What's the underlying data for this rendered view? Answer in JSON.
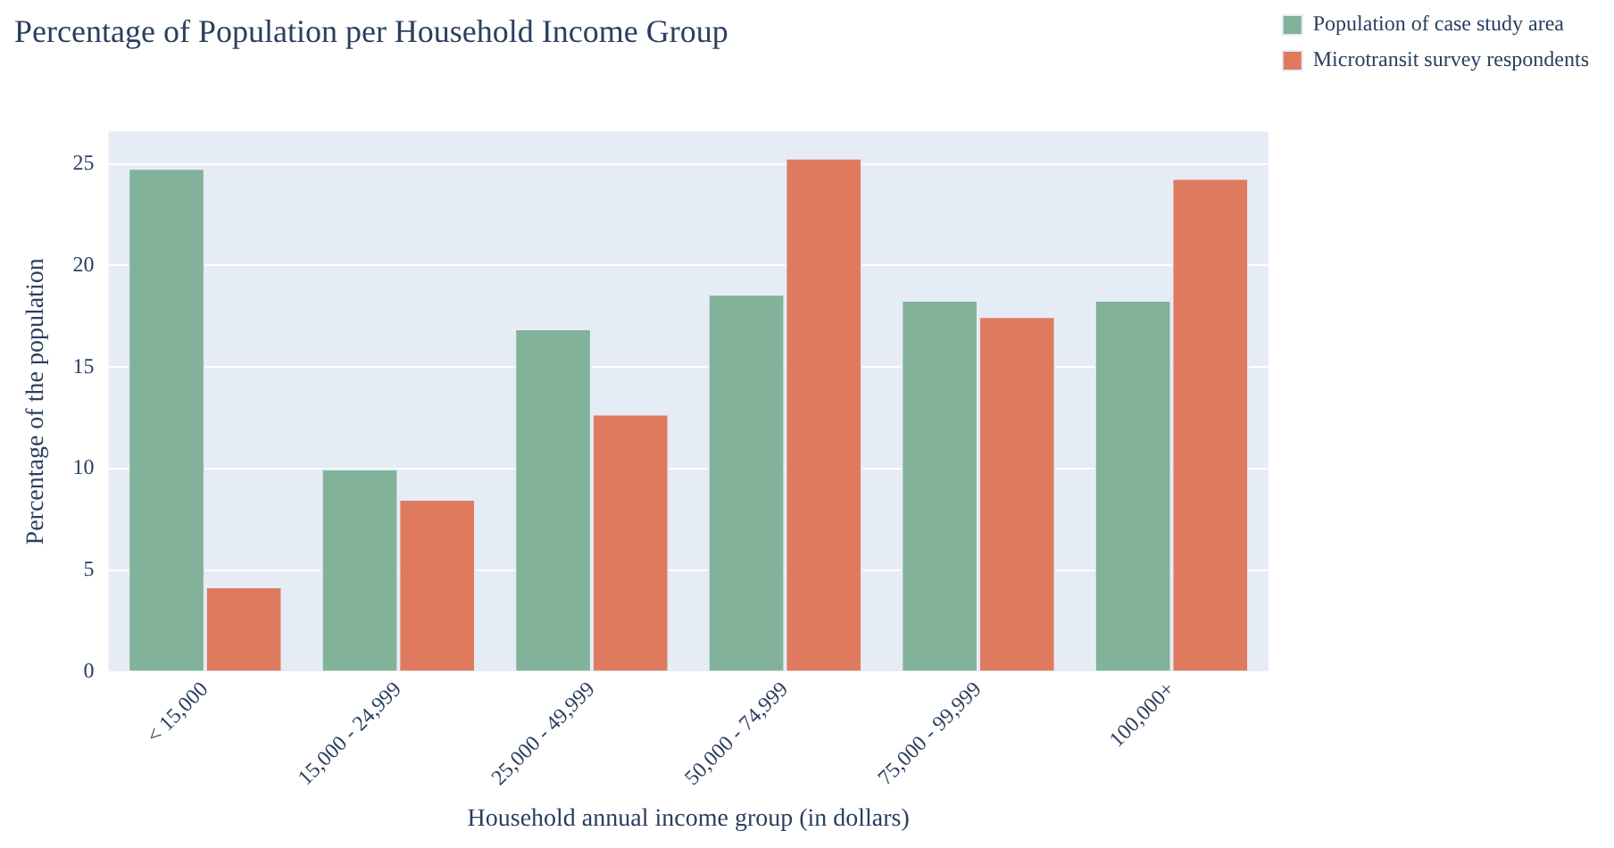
{
  "chart_data": {
    "type": "bar",
    "title": "Percentage of Population per Household Income Group",
    "xlabel": "Household annual income group (in dollars)",
    "ylabel": "Percentage of the population",
    "categories": [
      "< 15,000",
      "15,000 - 24,999",
      "25,000 - 49,999",
      "50,000 - 74,999",
      "75,000 - 99,999",
      "100,000+"
    ],
    "series": [
      {
        "name": "Population of case study area",
        "color": "#82b29a",
        "values": [
          24.8,
          10.0,
          16.9,
          18.6,
          18.3,
          18.3
        ]
      },
      {
        "name": "Microtransit survey respondents",
        "color": "#e07a5f",
        "values": [
          4.2,
          8.5,
          12.7,
          25.3,
          17.5,
          24.3
        ]
      }
    ],
    "ylim": [
      0,
      26.6
    ],
    "yticks": [
      0,
      5,
      10,
      15,
      20,
      25
    ],
    "grid": "y",
    "legend": "top right"
  }
}
